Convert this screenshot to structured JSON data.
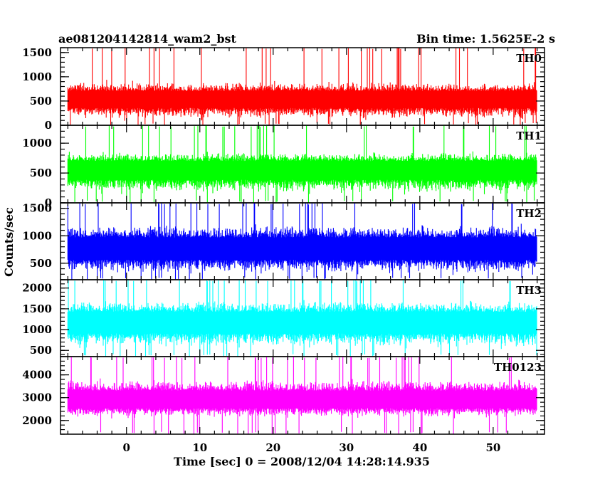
{
  "chart_data": {
    "type": "line",
    "title": "ae081204142814_wam2_bst",
    "subtitle": "Bin time: 1.5625E-2 s",
    "xlabel": "Time [sec] 0 = 2008/12/04 14:28:14.935",
    "ylabel": "Counts/sec",
    "grid": false,
    "xlim": [
      -9,
      57
    ],
    "data_x_range": [
      -8,
      56
    ],
    "x_ticks": [
      0,
      10,
      20,
      30,
      40,
      50
    ],
    "x_tick_labels": [
      "0",
      "10",
      "20",
      "30",
      "40",
      "50"
    ],
    "bin_time_s": 0.015625,
    "panels": [
      {
        "name": "TH0",
        "color": "#ff0000",
        "ylim": [
          0,
          1600
        ],
        "y_ticks": [
          0,
          500,
          1000,
          1500
        ],
        "y_tick_labels": [
          "0",
          "500",
          "1000",
          "1500"
        ],
        "envelope_low": [
          120,
          80,
          60,
          40,
          0
        ],
        "envelope_high": [
          900,
          1050,
          1200,
          1400,
          1600
        ],
        "typical_level": 550
      },
      {
        "name": "TH1",
        "color": "#00ff00",
        "ylim": [
          0,
          1300
        ],
        "y_ticks": [
          0,
          500,
          1000
        ],
        "y_tick_labels": [
          "0",
          "500",
          "1000"
        ],
        "envelope_low": [
          150,
          100,
          60,
          30,
          0
        ],
        "envelope_high": [
          850,
          950,
          1050,
          1200,
          1300
        ],
        "typical_level": 580
      },
      {
        "name": "TH2",
        "color": "#0000ff",
        "ylim": [
          200,
          1600
        ],
        "y_ticks": [
          500,
          1000,
          1500
        ],
        "y_tick_labels": [
          "500",
          "1000",
          "1500"
        ],
        "envelope_low": [
          300,
          270,
          240,
          210
        ],
        "envelope_high": [
          1200,
          1350,
          1500,
          1600
        ],
        "typical_level": 780
      },
      {
        "name": "TH3",
        "color": "#00ffff",
        "ylim": [
          350,
          2200
        ],
        "y_ticks": [
          500,
          1000,
          1500,
          2000
        ],
        "y_tick_labels": [
          "500",
          "1000",
          "1500",
          "2000"
        ],
        "envelope_low": [
          550,
          500,
          460,
          420
        ],
        "envelope_high": [
          1700,
          1900,
          2100,
          2200
        ],
        "typical_level": 1200
      },
      {
        "name": "TH0123",
        "color": "#ff00ff",
        "ylim": [
          1400,
          4800
        ],
        "y_ticks": [
          2000,
          3000,
          4000
        ],
        "y_tick_labels": [
          "2000",
          "3000",
          "4000"
        ],
        "envelope_low": [
          2100,
          1900,
          1700,
          1500
        ],
        "envelope_high": [
          3800,
          4100,
          4500,
          4800
        ],
        "typical_level": 2900
      }
    ]
  }
}
